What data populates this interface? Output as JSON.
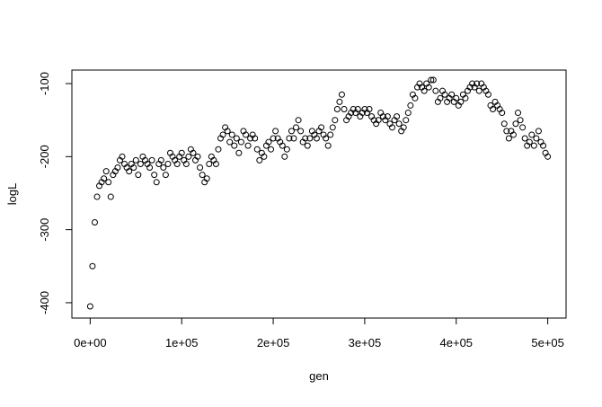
{
  "chart_data": {
    "type": "scatter",
    "x_label": "gen",
    "y_label": "logL",
    "xlim": [
      -20000,
      520000
    ],
    "ylim": [
      -421,
      -81.5
    ],
    "xticks": [
      {
        "value": 0,
        "label": "0e+00"
      },
      {
        "value": 100000,
        "label": "1e+05"
      },
      {
        "value": 200000,
        "label": "2e+05"
      },
      {
        "value": 300000,
        "label": "3e+05"
      },
      {
        "value": 400000,
        "label": "4e+05"
      },
      {
        "value": 500000,
        "label": "5e+05"
      }
    ],
    "yticks": [
      -400,
      -300,
      -200,
      -100
    ],
    "color": "#000000",
    "x": [
      0,
      2500,
      5000,
      7500,
      10000,
      12500,
      15000,
      17500,
      20000,
      22500,
      25000,
      27500,
      30000,
      32500,
      35000,
      37500,
      40000,
      42500,
      45000,
      47500,
      50000,
      52500,
      55000,
      57500,
      60000,
      62500,
      65000,
      67500,
      70000,
      72500,
      75000,
      77500,
      80000,
      82500,
      85000,
      87500,
      90000,
      92500,
      95000,
      97500,
      100000,
      102500,
      105000,
      107500,
      110000,
      112500,
      115000,
      117500,
      120000,
      122500,
      125000,
      127500,
      130000,
      132500,
      135000,
      137500,
      140000,
      142500,
      145000,
      147500,
      150000,
      152500,
      155000,
      157500,
      160000,
      162500,
      165000,
      167500,
      170000,
      172500,
      175000,
      177500,
      180000,
      182500,
      185000,
      187500,
      190000,
      192500,
      195000,
      197500,
      200000,
      202500,
      205000,
      207500,
      210000,
      212500,
      215000,
      217500,
      220000,
      222500,
      225000,
      227500,
      230000,
      232500,
      235000,
      237500,
      240000,
      242500,
      245000,
      247500,
      250000,
      252500,
      255000,
      257500,
      260000,
      262500,
      265000,
      267500,
      270000,
      272500,
      275000,
      277500,
      280000,
      282500,
      285000,
      287500,
      290000,
      292500,
      295000,
      297500,
      300000,
      302500,
      305000,
      307500,
      310000,
      312500,
      315000,
      317500,
      320000,
      322500,
      325000,
      327500,
      330000,
      332500,
      335000,
      337500,
      340000,
      342500,
      345000,
      347500,
      350000,
      352500,
      355000,
      357500,
      360000,
      362500,
      365000,
      367500,
      370000,
      372500,
      375000,
      377500,
      380000,
      382500,
      385000,
      387500,
      390000,
      392500,
      395000,
      397500,
      400000,
      402500,
      405000,
      407500,
      410000,
      412500,
      415000,
      417500,
      420000,
      422500,
      425000,
      427500,
      430000,
      432500,
      435000,
      437500,
      440000,
      442500,
      445000,
      447500,
      450000,
      452500,
      455000,
      457500,
      460000,
      462500,
      465000,
      467500,
      470000,
      472500,
      475000,
      477500,
      480000,
      482500,
      485000,
      487500,
      490000,
      492500,
      495000,
      497500,
      500000
    ],
    "values": [
      -405,
      -350,
      -290,
      -255,
      -240,
      -235,
      -230,
      -220,
      -235,
      -255,
      -225,
      -220,
      -215,
      -205,
      -200,
      -210,
      -215,
      -220,
      -210,
      -215,
      -205,
      -225,
      -210,
      -200,
      -205,
      -210,
      -215,
      -205,
      -225,
      -235,
      -210,
      -205,
      -215,
      -225,
      -210,
      -195,
      -200,
      -205,
      -210,
      -200,
      -195,
      -205,
      -210,
      -200,
      -190,
      -195,
      -205,
      -200,
      -215,
      -225,
      -235,
      -230,
      -210,
      -200,
      -205,
      -210,
      -190,
      -175,
      -170,
      -160,
      -165,
      -180,
      -170,
      -185,
      -175,
      -195,
      -180,
      -165,
      -170,
      -185,
      -175,
      -170,
      -175,
      -190,
      -205,
      -195,
      -200,
      -185,
      -180,
      -190,
      -175,
      -165,
      -175,
      -180,
      -185,
      -200,
      -190,
      -175,
      -165,
      -175,
      -160,
      -150,
      -165,
      -180,
      -175,
      -185,
      -175,
      -165,
      -170,
      -175,
      -165,
      -160,
      -170,
      -175,
      -185,
      -170,
      -160,
      -150,
      -135,
      -125,
      -115,
      -135,
      -150,
      -145,
      -140,
      -135,
      -140,
      -135,
      -145,
      -140,
      -135,
      -140,
      -135,
      -145,
      -150,
      -155,
      -150,
      -140,
      -145,
      -150,
      -145,
      -155,
      -160,
      -150,
      -145,
      -155,
      -165,
      -160,
      -150,
      -140,
      -130,
      -115,
      -120,
      -105,
      -100,
      -105,
      -110,
      -100,
      -105,
      -95,
      -95,
      -110,
      -125,
      -120,
      -110,
      -115,
      -125,
      -120,
      -115,
      -125,
      -120,
      -130,
      -125,
      -115,
      -120,
      -110,
      -105,
      -100,
      -105,
      -100,
      -110,
      -100,
      -105,
      -110,
      -115,
      -130,
      -135,
      -125,
      -130,
      -135,
      -140,
      -155,
      -165,
      -175,
      -165,
      -170,
      -155,
      -140,
      -150,
      -160,
      -175,
      -185,
      -180,
      -170,
      -185,
      -175,
      -165,
      -180,
      -185,
      -195,
      -200
    ]
  }
}
